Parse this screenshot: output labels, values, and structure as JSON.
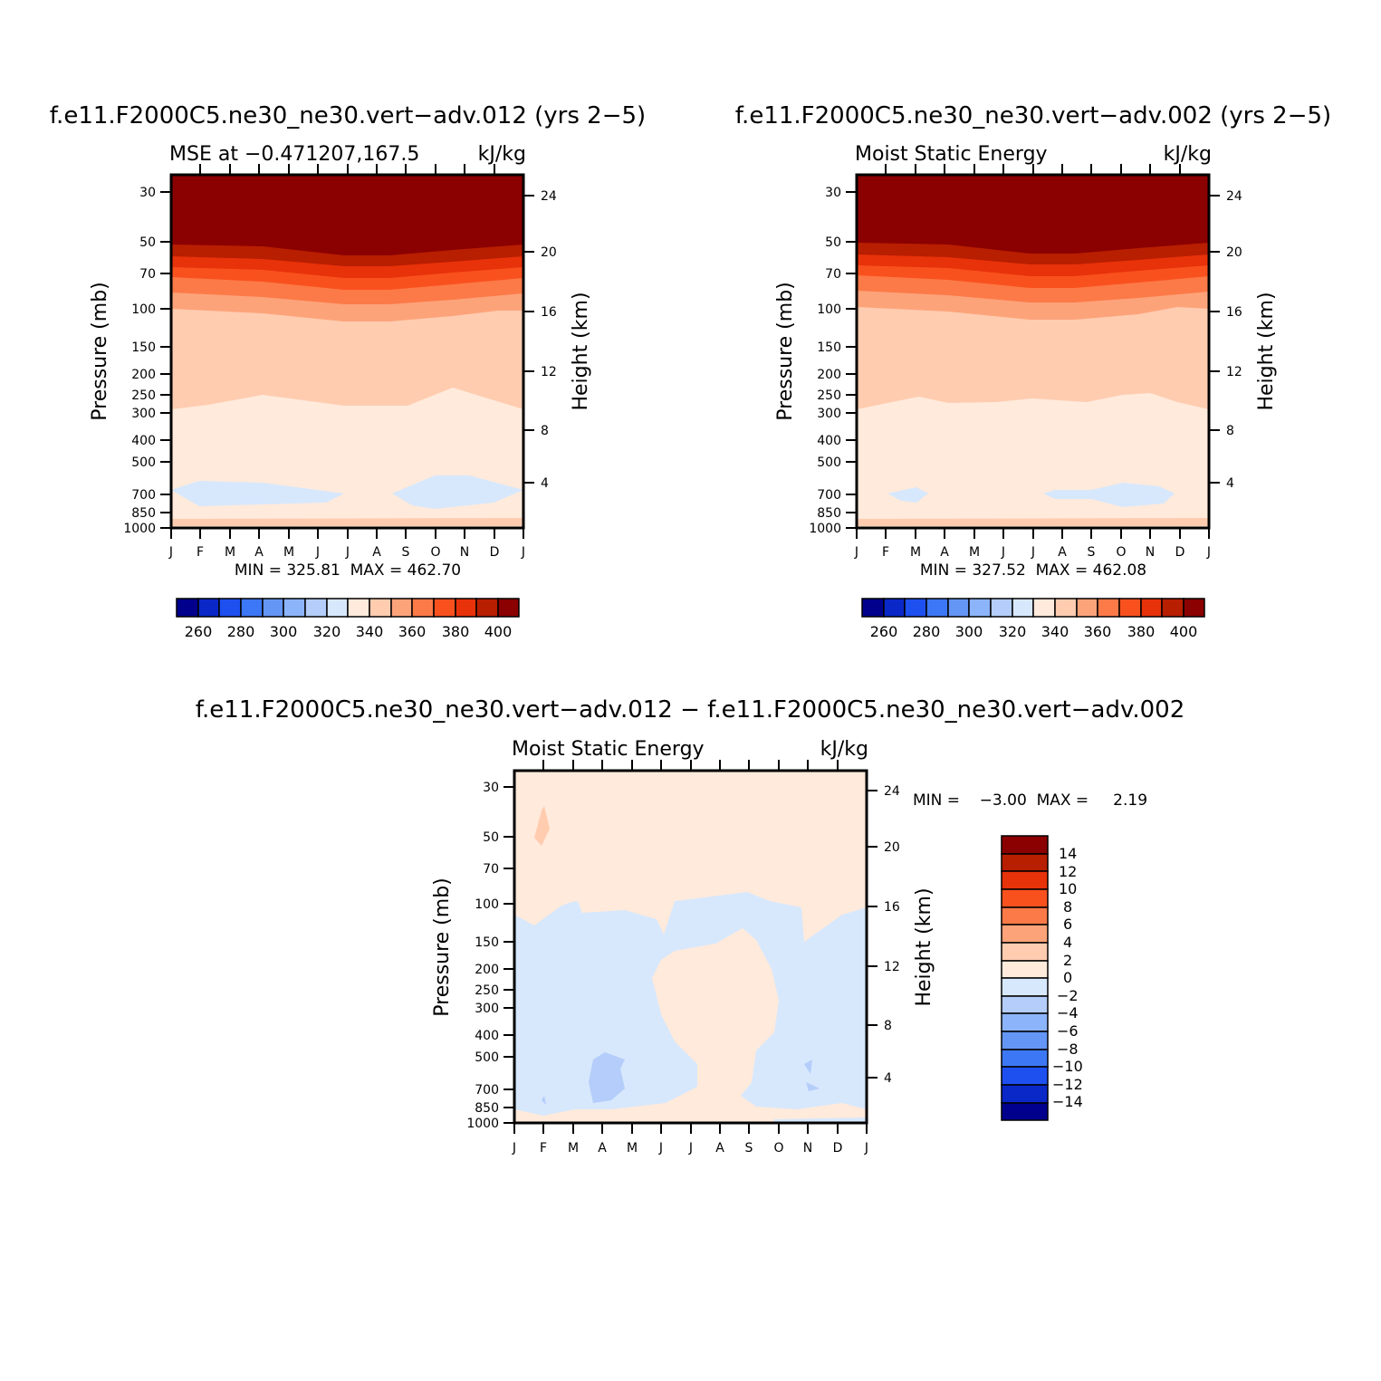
{
  "panels": [
    {
      "title": "f.e11.F2000C5.ne30_ne30.vert−adv.012 (yrs 2−5)",
      "subtitle_left": "MSE at −0.471207,167.5",
      "subtitle_right": "kJ/kg",
      "stats": "MIN = 325.81  MAX = 462.70"
    },
    {
      "title": "f.e11.F2000C5.ne30_ne30.vert−adv.002 (yrs 2−5)",
      "subtitle_left": "Moist Static Energy",
      "subtitle_right": "kJ/kg",
      "stats": "MIN = 327.52  MAX = 462.08"
    },
    {
      "title": "f.e11.F2000C5.ne30_ne30.vert−adv.012 − f.e11.F2000C5.ne30_ne30.vert−adv.002",
      "subtitle_left": "Moist Static Energy",
      "subtitle_right": "kJ/kg",
      "stats": "MIN =    −3.00  MAX =     2.19"
    }
  ],
  "chart_data": [
    {
      "type": "heatmap",
      "title": "f.e11.F2000C5.ne30_ne30.vert−adv.012 (yrs 2−5)",
      "subtitle": "MSE at −0.471207,167.5",
      "units": "kJ/kg",
      "xlabel": "",
      "ylabel": "Pressure (mb)",
      "y2label": "Height (km)",
      "x_ticks": [
        "J",
        "F",
        "M",
        "A",
        "M",
        "J",
        "J",
        "A",
        "S",
        "O",
        "N",
        "D",
        "J"
      ],
      "y_ticks": [
        30,
        50,
        70,
        100,
        150,
        200,
        250,
        300,
        400,
        500,
        700,
        850,
        1000
      ],
      "y2_ticks": [
        4,
        8,
        12,
        16,
        20,
        24
      ],
      "ylim": [
        1000,
        25
      ],
      "y_scale": "log",
      "min": 325.81,
      "max": 462.7,
      "levels": [
        260,
        270,
        280,
        290,
        300,
        310,
        320,
        330,
        340,
        350,
        360,
        370,
        380,
        390,
        400
      ],
      "colorbar_labels": [
        "260",
        "280",
        "300",
        "320",
        "340",
        "360",
        "380",
        "400"
      ],
      "colors": [
        "#00008c",
        "#0a28c8",
        "#1e50f0",
        "#3c78f5",
        "#6496f5",
        "#8cb4fa",
        "#b4cdfa",
        "#d7e8fd",
        "#ffeadb",
        "#ffccb0",
        "#fda37a",
        "#fc7a48",
        "#f9511e",
        "#e8320a",
        "#b81e00",
        "#8b0000"
      ],
      "grid": false
    },
    {
      "type": "heatmap",
      "title": "f.e11.F2000C5.ne30_ne30.vert−adv.002 (yrs 2−5)",
      "subtitle": "Moist Static Energy",
      "units": "kJ/kg",
      "xlabel": "",
      "ylabel": "Pressure (mb)",
      "y2label": "Height (km)",
      "x_ticks": [
        "J",
        "F",
        "M",
        "A",
        "M",
        "J",
        "J",
        "A",
        "S",
        "O",
        "N",
        "D",
        "J"
      ],
      "y_ticks": [
        30,
        50,
        70,
        100,
        150,
        200,
        250,
        300,
        400,
        500,
        700,
        850,
        1000
      ],
      "y2_ticks": [
        4,
        8,
        12,
        16,
        20,
        24
      ],
      "ylim": [
        1000,
        25
      ],
      "y_scale": "log",
      "min": 327.52,
      "max": 462.08,
      "levels": [
        260,
        270,
        280,
        290,
        300,
        310,
        320,
        330,
        340,
        350,
        360,
        370,
        380,
        390,
        400
      ],
      "colorbar_labels": [
        "260",
        "280",
        "300",
        "320",
        "340",
        "360",
        "380",
        "400"
      ],
      "colors": [
        "#00008c",
        "#0a28c8",
        "#1e50f0",
        "#3c78f5",
        "#6496f5",
        "#8cb4fa",
        "#b4cdfa",
        "#d7e8fd",
        "#ffeadb",
        "#ffccb0",
        "#fda37a",
        "#fc7a48",
        "#f9511e",
        "#e8320a",
        "#b81e00",
        "#8b0000"
      ],
      "grid": false
    },
    {
      "type": "heatmap",
      "title": "f.e11.F2000C5.ne30_ne30.vert−adv.012 − f.e11.F2000C5.ne30_ne30.vert−adv.002",
      "subtitle": "Moist Static Energy",
      "units": "kJ/kg",
      "xlabel": "",
      "ylabel": "Pressure (mb)",
      "y2label": "Height (km)",
      "x_ticks": [
        "J",
        "F",
        "M",
        "A",
        "M",
        "J",
        "J",
        "A",
        "S",
        "O",
        "N",
        "D",
        "J"
      ],
      "y_ticks": [
        30,
        50,
        70,
        100,
        150,
        200,
        250,
        300,
        400,
        500,
        700,
        850,
        1000
      ],
      "y2_ticks": [
        4,
        8,
        12,
        16,
        20,
        24
      ],
      "ylim": [
        1000,
        25
      ],
      "y_scale": "log",
      "min": -3.0,
      "max": 2.19,
      "levels": [
        -14,
        -12,
        -10,
        -8,
        -6,
        -4,
        -2,
        0,
        2,
        4,
        6,
        8,
        10,
        12,
        14
      ],
      "colorbar_labels": [
        "14",
        "12",
        "10",
        "8",
        "6",
        "4",
        "2",
        "0",
        "−2",
        "−4",
        "−6",
        "−8",
        "−10",
        "−12",
        "−14"
      ],
      "colors": [
        "#00008c",
        "#0a28c8",
        "#1e50f0",
        "#3c78f5",
        "#6496f5",
        "#8cb4fa",
        "#b4cdfa",
        "#d7e8fd",
        "#ffeadb",
        "#ffccb0",
        "#fda37a",
        "#fc7a48",
        "#f9511e",
        "#e8320a",
        "#b81e00",
        "#8b0000"
      ],
      "grid": false
    }
  ]
}
